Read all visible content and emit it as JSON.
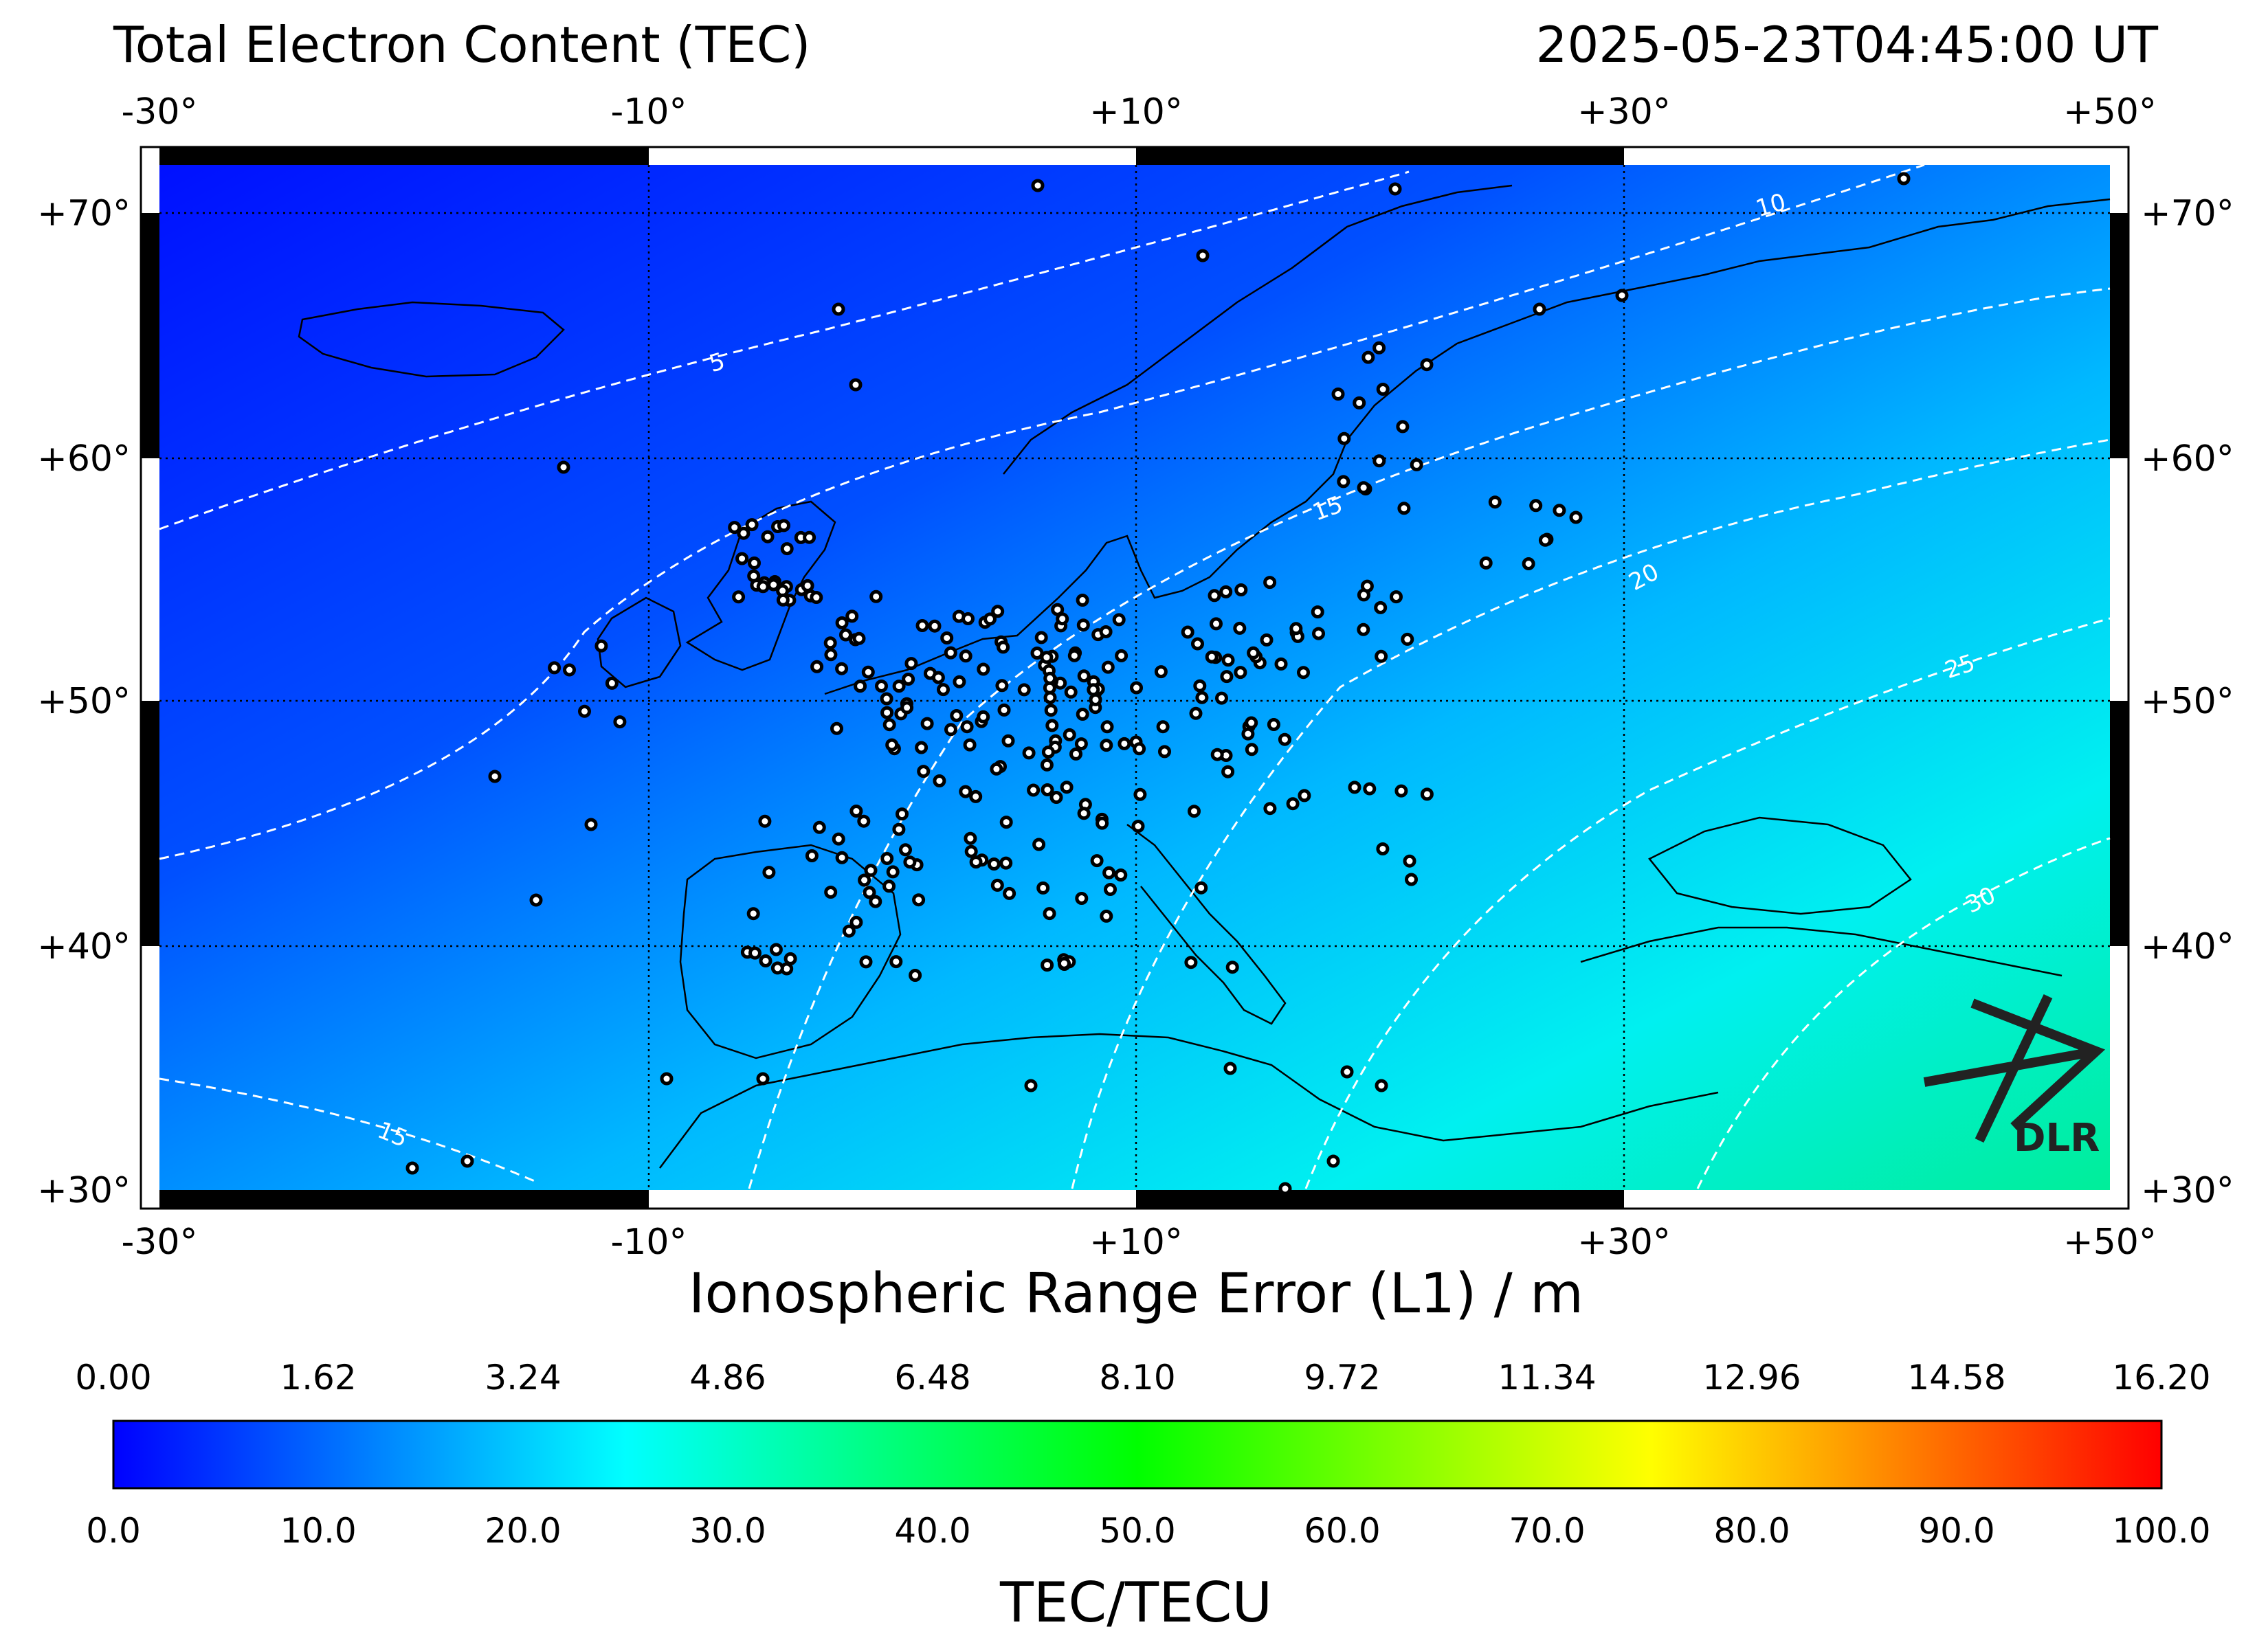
{
  "header": {
    "title": "Total Electron Content (TEC)",
    "timestamp": "2025-05-23T04:45:00 UT"
  },
  "map": {
    "lon_range": [
      -30,
      50
    ],
    "lat_range": [
      30,
      72
    ],
    "lon_tick_labels": [
      "-30°",
      "-10°",
      "+10°",
      "+30°",
      "+50°"
    ],
    "lat_tick_labels": [
      "+70°",
      "+60°",
      "+50°",
      "+40°",
      "+30°"
    ],
    "contour_labels": [
      "5",
      "10",
      "15",
      "20",
      "25",
      "30",
      "15"
    ],
    "logo_text": "DLR",
    "colors": {
      "low": "#0000ff",
      "mid": "#00ffff",
      "high": "#00ff7f",
      "grid": "#000000",
      "contour": "#ffffff"
    }
  },
  "colorbar": {
    "title": "Ionospheric Range Error (L1) / m",
    "top_labels": [
      "0.00",
      "1.62",
      "3.24",
      "4.86",
      "6.48",
      "8.10",
      "9.72",
      "11.34",
      "12.96",
      "14.58",
      "16.20"
    ],
    "bottom_labels": [
      "0.0",
      "10.0",
      "20.0",
      "30.0",
      "40.0",
      "50.0",
      "60.0",
      "70.0",
      "80.0",
      "90.0",
      "100.0"
    ],
    "unit_label": "TEC/TECU",
    "range": [
      0,
      100
    ],
    "stops": [
      "#0000ff",
      "#00ffff",
      "#00ff00",
      "#ffff00",
      "#ff0000"
    ]
  }
}
